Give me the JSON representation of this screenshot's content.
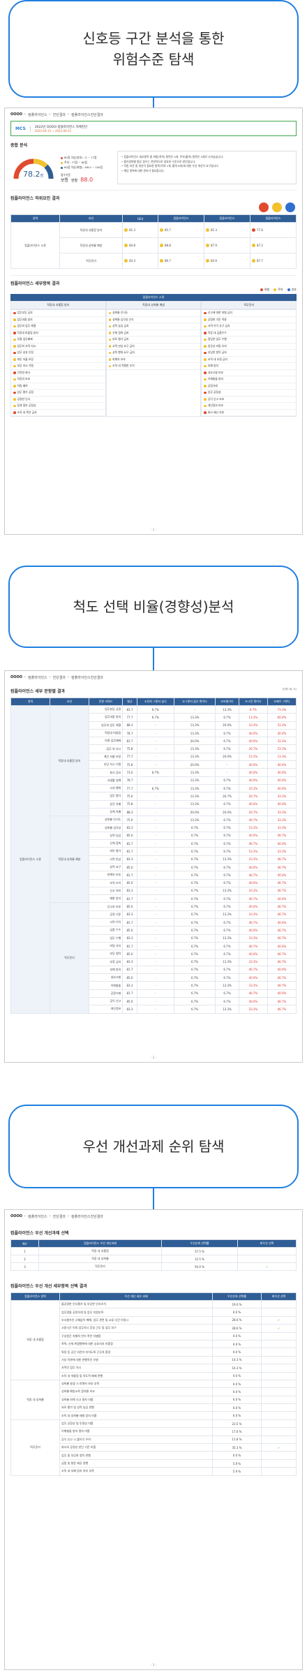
{
  "sections": [
    {
      "title_line1": "신호등 구간 분석을 통한",
      "title_line2": "위험수준 탐색"
    },
    {
      "title_line1": "척도 선택 비율(경향성)분석",
      "title_line2": ""
    },
    {
      "title_line1": "우선 개선과제 순위 탐색",
      "title_line2": ""
    }
  ],
  "report1": {
    "breadcrumb": [
      "OOOO",
      "컴플라이언스",
      "진단결과",
      "컴플라이언스진단결과"
    ],
    "subject_code": "MCS",
    "subject_line1": "2022년  OOOO  컴플라이언스 자체진단",
    "subject_line2": "2022-04-15 ~ 2022-04-21",
    "overall_heading": "종합 분석",
    "score": "78.2",
    "score_suffix": "점",
    "legend": [
      "80점 이상(양호) : 0 ~ 77점",
      "주의 : 77점 ~ 80점",
      "60점 이상(위험) : 88.0 ~ 100점"
    ],
    "score_label": "점수기준",
    "level_label": "보통",
    "level_sub": "현황",
    "score2": "88.0",
    "notes": [
      "컴플라이언스 세부항목 중 위험(적색) 항목은 0개, 주의(황색) 항목은 4개로 나타났습니다.",
      "평가영역별 평균 점수는 전반적으로 양호한 수준으로 판단됩니다.",
      "직원 의견 중 개선이 필요한 항목(적색 2개, 황색 6개)에 대한 우선 개선이 요구됩니다.",
      "해당 영역에 대한 관리가 필요합니다."
    ],
    "result_heading": "컴플라이언스 하위요인 결과",
    "result_cols": [
      "영역",
      "요인",
      "GE4",
      "컴플라이언스",
      "컴플라이언스",
      "컴플라이언스"
    ],
    "result_area": "컴플라이언스 소관",
    "result_rows": [
      {
        "name": "직장내 괴롭힘 방지",
        "v1": "81.3",
        "v2": "85.7",
        "v3": "81.3",
        "v4": "77.6"
      },
      {
        "name": "직장내 성희롱 예방",
        "v1": "84.8",
        "v2": "88.8",
        "v3": "87.9",
        "v4": "87.2"
      },
      {
        "name": "직무윤리",
        "v1": "83.3",
        "v2": "86.7",
        "v3": "84.9",
        "v4": "87.7"
      }
    ],
    "detail_heading": "컴플라이언스 세부항목 결과",
    "detail_legend": [
      "위험",
      "주의",
      "양호"
    ],
    "detail_title": "컴플라이언스 소관",
    "detail_cols": [
      "직장내 괴롭힘 방지",
      "직장내 성희롱 예방",
      "직무윤리"
    ],
    "detail_col1": [
      "업무부당 금지",
      "업무과중 방지",
      "업무외 업무 해결",
      "직장내 따돌림 방지",
      "의결 업무배제",
      "업무외 사적 지시",
      "업무 성과 인정",
      "개인 자율 보장",
      "부당 지시 거절",
      "건전한 회식",
      "직장의 보호",
      "직원 배려",
      "업무 평가 공정",
      "공정한 인사",
      "징계 절차 공정성",
      "조직 내 폭언 금지"
    ],
    "detail_col2": [
      "성희롱 인식도",
      "성희롱 심각성 인식",
      "성적 농담 금지",
      "신체 접촉 금지",
      "외모 평가 금지",
      "사적 만남 요구 금지",
      "성적 행위 요구 금지",
      "피해자 보호",
      "조직 내 적절한 조치"
    ],
    "detail_col3": [
      "신고에 대한 처벌 금지",
      "공정한 기준 적용",
      "사적 이익 추구 금지",
      "직장 내 금품수수",
      "정당한 업무 수행",
      "업무상 비밀 유지",
      "부당한 청탁 금지",
      "조직 내 부정 금지",
      "부패 방지",
      "내부고발 보호",
      "이해충돌 방지",
      "공정거래",
      "업무 공정성",
      "공익 신고 보호",
      "개인정보 보호",
      "회사 재산 보호"
    ],
    "page_no": "- 1 -"
  },
  "report2": {
    "breadcrumb": [
      "OOOO",
      "컴플라이언스",
      "진단결과",
      "컴플라이언스진단결과"
    ],
    "heading": "컴플라이언스 세부 문항별 결과",
    "unit": "(단위: 점, %)",
    "cols": [
      "영역",
      "요인",
      "문항 키워드",
      "평균",
      "①전혀 그렇지 않다",
      "②그렇지 않은 편이다",
      "③보통이다",
      "④그런 편이다",
      "⑤매우 그렇다"
    ],
    "area": "컴플라이언스 소관",
    "factors": [
      {
        "name": "직장내 괴롭힘 방지",
        "rows": [
          [
            "업무분담 공정",
            "81.7",
            "6.7%",
            "-",
            "13.3%",
            "6.7%",
            "73.3%"
          ],
          [
            "업무과중 방지",
            "77.7",
            "6.7%",
            "13.3%",
            "6.7%",
            "13.3%",
            "60.0%"
          ],
          [
            "업무외 업무 해결",
            "88.3",
            "-",
            "13.3%",
            "20.0%",
            "33.3%",
            "33.3%"
          ],
          [
            "직장내 따돌림",
            "78.7",
            "-",
            "13.3%",
            "6.7%",
            "40.0%",
            "40.0%"
          ],
          [
            "의결 업무배제",
            "81.7",
            "-",
            "20.0%",
            "6.7%",
            "40.0%",
            "33.3%"
          ],
          [
            "업무 외 지시",
            "75.8",
            "-",
            "13.3%",
            "6.7%",
            "26.7%",
            "53.3%"
          ],
          [
            "개인 자율 보장",
            "77.7",
            "-",
            "13.3%",
            "20.0%",
            "53.3%",
            "13.3%"
          ],
          [
            "부당 지시 거절",
            "75.8",
            "-",
            "20.0%",
            "-",
            "40.0%",
            "40.0%"
          ],
          [
            "회식 강요",
            "73.0",
            "6.7%",
            "13.3%",
            "-",
            "40.0%",
            "40.0%"
          ],
          [
            "사생활 침해",
            "78.7",
            "-",
            "13.3%",
            "6.7%",
            "40.0%",
            "40.0%"
          ],
          [
            "소외 행위",
            "77.7",
            "6.7%",
            "13.3%",
            "6.7%",
            "33.3%",
            "40.0%"
          ],
          [
            "업무 평가",
            "75.0",
            "-",
            "13.3%",
            "26.7%",
            "26.7%",
            "33.3%"
          ],
          [
            "승진 차별",
            "75.8",
            "-",
            "13.3%",
            "6.7%",
            "40.0%",
            "40.0%"
          ],
          [
            "징계 차별",
            "88.3",
            "-",
            "20.0%",
            "20.0%",
            "26.7%",
            "33.3%"
          ]
        ]
      },
      {
        "name": "직장내 성희롱 예방",
        "rows": [
          [
            "성희롱 인식도",
            "75.0",
            "-",
            "13.3%",
            "6.7%",
            "46.7%",
            "33.3%"
          ],
          [
            "성희롱 심각성",
            "83.3",
            "-",
            "6.7%",
            "6.7%",
            "53.3%",
            "33.3%"
          ],
          [
            "성적 농담",
            "85.0",
            "-",
            "6.7%",
            "6.7%",
            "40.0%",
            "46.7%"
          ],
          [
            "신체 접촉",
            "81.7",
            "-",
            "6.7%",
            "6.7%",
            "46.7%",
            "40.0%"
          ],
          [
            "외모 평가",
            "81.7",
            "-",
            "6.7%",
            "6.7%",
            "53.3%",
            "33.3%"
          ],
          [
            "사적 만남",
            "83.3",
            "-",
            "6.7%",
            "13.3%",
            "33.3%",
            "46.7%"
          ],
          [
            "성적 요구",
            "85.0",
            "-",
            "6.7%",
            "6.7%",
            "40.0%",
            "46.7%"
          ],
          [
            "피해자 보호",
            "81.7",
            "-",
            "6.7%",
            "6.7%",
            "46.7%",
            "40.0%"
          ],
          [
            "조직 조치",
            "85.0",
            "-",
            "6.7%",
            "6.7%",
            "40.0%",
            "46.7%"
          ],
          [
            "신고 처리",
            "83.3",
            "-",
            "6.7%",
            "13.3%",
            "33.3%",
            "46.7%"
          ],
          [
            "재발 방지",
            "81.7",
            "-",
            "6.7%",
            "6.7%",
            "46.7%",
            "40.0%"
          ]
        ]
      },
      {
        "name": "직무윤리",
        "rows": [
          [
            "신고자 보호",
            "85.0",
            "-",
            "6.7%",
            "6.7%",
            "40.0%",
            "46.7%"
          ],
          [
            "공정 기준",
            "83.3",
            "-",
            "6.7%",
            "13.3%",
            "33.3%",
            "46.7%"
          ],
          [
            "사적 이익",
            "81.7",
            "-",
            "6.7%",
            "6.7%",
            "46.7%",
            "40.0%"
          ],
          [
            "금품 수수",
            "85.0",
            "-",
            "6.7%",
            "6.7%",
            "40.0%",
            "46.7%"
          ],
          [
            "업무 수행",
            "83.3",
            "-",
            "6.7%",
            "13.3%",
            "33.3%",
            "46.7%"
          ],
          [
            "비밀 유지",
            "81.7",
            "-",
            "6.7%",
            "6.7%",
            "46.7%",
            "40.0%"
          ],
          [
            "부당 청탁",
            "85.0",
            "-",
            "6.7%",
            "6.7%",
            "40.0%",
            "46.7%"
          ],
          [
            "부정 금지",
            "83.3",
            "-",
            "6.7%",
            "13.3%",
            "33.3%",
            "46.7%"
          ],
          [
            "부패 방지",
            "81.7",
            "-",
            "6.7%",
            "6.7%",
            "46.7%",
            "40.0%"
          ],
          [
            "내부고발",
            "85.0",
            "-",
            "6.7%",
            "6.7%",
            "40.0%",
            "46.7%"
          ],
          [
            "이해충돌",
            "83.3",
            "-",
            "6.7%",
            "13.3%",
            "33.3%",
            "46.7%"
          ],
          [
            "공정거래",
            "81.7",
            "-",
            "6.7%",
            "6.7%",
            "46.7%",
            "40.0%"
          ],
          [
            "공익 신고",
            "85.0",
            "-",
            "6.7%",
            "6.7%",
            "40.0%",
            "46.7%"
          ],
          [
            "개인정보",
            "83.3",
            "-",
            "6.7%",
            "13.3%",
            "33.3%",
            "46.7%"
          ]
        ]
      }
    ],
    "page_no": "- 2 -"
  },
  "report3": {
    "breadcrumb": [
      "OOOO",
      "컴플라이언스",
      "진단결과",
      "컴플라이언스진단결과"
    ],
    "heading1": "컴플라이언스 우선 개선과제 선택",
    "t1_cols": [
      "NO",
      "컴플라이언스 우선 개선과제",
      "우선순위 선택률",
      "최우선 선택"
    ],
    "t1_rows": [
      {
        "no": "1",
        "name": "직장 내 괴롭힘",
        "rate": "37.5 %",
        "check": ""
      },
      {
        "no": "2",
        "name": "직장 내 성희롱",
        "rate": "12.5 %",
        "check": ""
      },
      {
        "no": "3",
        "name": "직무윤리",
        "rate": "50.0 %",
        "check": "✓"
      }
    ],
    "heading2": "컴플라이언스 우선 개선 세부항목 선택 결과",
    "t2_cols": [
      "컴플라이언스 영역",
      "우선 개선 세부 과제",
      "우선순위 선택률",
      "최우선 선택"
    ],
    "t2_groups": [
      {
        "area": "직장 내 괴롭힘",
        "rows": [
          [
            "불공정한 인사평가 및 부당한 인사조치",
            "19.0 %",
            ""
          ],
          [
            "업무량을 공정하게 및 업무 지원부족",
            "0.0 %",
            ""
          ],
          [
            "부서평가인 규제없이 폐해, 업무 관련 및 교류 사건 이용시",
            "28.6 %",
            "✓"
          ],
          [
            "고용시간 이외 업무지시 휴일 근무 및 업무 요구",
            "28.6 %",
            "✓"
          ],
          [
            "구성원간 차별적 언어 폭언 차별함",
            "0.0 %",
            ""
          ],
          [
            "폭력, 신체 위협행위에 대한 상호지지 미흡함",
            "0.0 %",
            ""
          ],
          [
            "특정 동 공간 의견이 미치도록 근무처 환경",
            "0.0 %",
            ""
          ],
          [
            "기성 직관에 대한 관행적인 유발",
            "14.3 %",
            ""
          ],
          [
            "사적인 업무 지시",
            "14.3 %",
            ""
          ],
          [
            "조직 내 따돌림 및 의도적 배제 관행",
            "0.0 %",
            ""
          ]
        ]
      },
      {
        "area": "직장 내 성희롱",
        "rows": [
          [
            "성희롱 발생 시 피해자 보호 부족",
            "0.0 %",
            ""
          ],
          [
            "성희롱 예방교육 참여율 저조",
            "0.0 %",
            ""
          ],
          [
            "성희롱 피해 신고 절차 미흡",
            "0.0 %",
            ""
          ],
          [
            "외모 평가 및 성적 농담 관행",
            "0.0 %",
            ""
          ],
          [
            "조직 내 성희롱 재발 방지 미흡",
            "0.0 %",
            ""
          ]
        ]
      },
      {
        "area": "직무윤리",
        "rows": [
          [
            "업무 공정성 및 투명성 미흡",
            "23.5 %",
            ""
          ],
          [
            "이해충돌 방지 절차 미흡",
            "17.6 %",
            ""
          ],
          [
            "공익 신고 시 불이익 우려",
            "11.8 %",
            ""
          ],
          [
            "회사의 공정성 판단 기준 미흡",
            "35.3 %",
            "✓"
          ],
          [
            "업무 중 부당한 청탁 관행",
            "0.0 %",
            ""
          ],
          [
            "금품 및 향응 제공 관행",
            "5.9 %",
            ""
          ],
          [
            "조직 내 부패 방지 의지 부족",
            "5.9 %",
            ""
          ]
        ]
      }
    ],
    "page_no": "- 3 -"
  }
}
